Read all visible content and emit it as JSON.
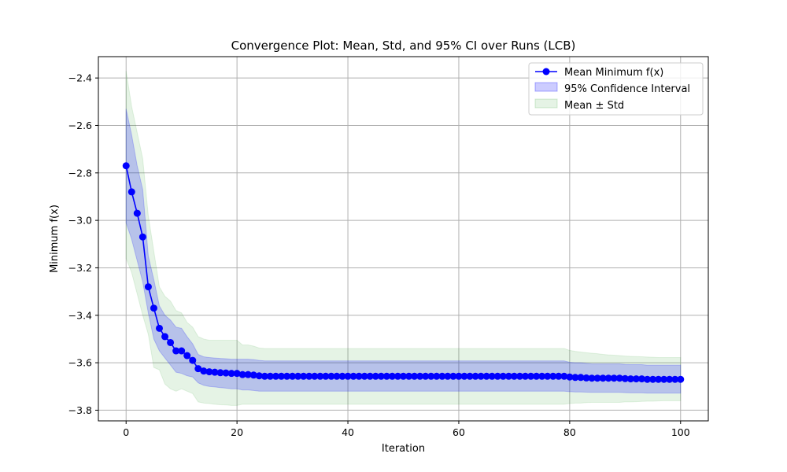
{
  "chart_data": {
    "type": "line",
    "title": "Convergence Plot: Mean, Std, and 95% CI over Runs (LCB)",
    "xlabel": "Iteration",
    "ylabel": "Minimum f(x)",
    "xlim": [
      -5,
      105
    ],
    "ylim": [
      -3.845,
      -2.31
    ],
    "xticks": [
      0,
      20,
      40,
      60,
      80,
      100
    ],
    "xtick_labels": [
      "0",
      "20",
      "40",
      "60",
      "80",
      "100"
    ],
    "yticks": [
      -3.8,
      -3.6,
      -3.4,
      -3.2,
      -3.0,
      -2.8,
      -2.6,
      -2.4
    ],
    "ytick_labels": [
      "−3.8",
      "−3.6",
      "−3.4",
      "−3.2",
      "−3.0",
      "−2.8",
      "−2.6",
      "−2.4"
    ],
    "grid": true,
    "legend_position": "top-right",
    "legend": [
      "Mean Minimum f(x)",
      "95% Confidence Interval",
      "Mean ± Std"
    ],
    "colors": {
      "mean": "#0000ff",
      "ci_fill": "#0000ff",
      "std_fill": "#2ca02c",
      "grid": "#b0b0b0"
    },
    "x": [
      0,
      1,
      2,
      3,
      4,
      5,
      6,
      7,
      8,
      9,
      10,
      11,
      12,
      13,
      14,
      15,
      16,
      17,
      18,
      19,
      20,
      21,
      22,
      23,
      24,
      25,
      26,
      27,
      28,
      29,
      30,
      31,
      32,
      33,
      34,
      35,
      36,
      37,
      38,
      39,
      40,
      41,
      42,
      43,
      44,
      45,
      46,
      47,
      48,
      49,
      50,
      51,
      52,
      53,
      54,
      55,
      56,
      57,
      58,
      59,
      60,
      61,
      62,
      63,
      64,
      65,
      66,
      67,
      68,
      69,
      70,
      71,
      72,
      73,
      74,
      75,
      76,
      77,
      78,
      79,
      80,
      81,
      82,
      83,
      84,
      85,
      86,
      87,
      88,
      89,
      90,
      91,
      92,
      93,
      94,
      95,
      96,
      97,
      98,
      99,
      100
    ],
    "series": [
      {
        "name": "Mean Minimum f(x)",
        "values": [
          -2.77,
          -2.88,
          -2.97,
          -3.07,
          -3.28,
          -3.37,
          -3.455,
          -3.49,
          -3.515,
          -3.55,
          -3.55,
          -3.57,
          -3.59,
          -3.625,
          -3.635,
          -3.638,
          -3.64,
          -3.642,
          -3.643,
          -3.645,
          -3.645,
          -3.65,
          -3.65,
          -3.652,
          -3.655,
          -3.657,
          -3.657,
          -3.657,
          -3.657,
          -3.657,
          -3.657,
          -3.657,
          -3.657,
          -3.657,
          -3.657,
          -3.657,
          -3.657,
          -3.657,
          -3.657,
          -3.657,
          -3.657,
          -3.657,
          -3.657,
          -3.657,
          -3.657,
          -3.657,
          -3.657,
          -3.657,
          -3.657,
          -3.657,
          -3.657,
          -3.657,
          -3.657,
          -3.657,
          -3.657,
          -3.657,
          -3.657,
          -3.657,
          -3.657,
          -3.657,
          -3.657,
          -3.657,
          -3.657,
          -3.657,
          -3.657,
          -3.657,
          -3.657,
          -3.657,
          -3.657,
          -3.657,
          -3.657,
          -3.657,
          -3.657,
          -3.657,
          -3.657,
          -3.657,
          -3.657,
          -3.657,
          -3.657,
          -3.657,
          -3.66,
          -3.662,
          -3.662,
          -3.664,
          -3.665,
          -3.665,
          -3.665,
          -3.665,
          -3.665,
          -3.665,
          -3.667,
          -3.668,
          -3.668,
          -3.668,
          -3.67,
          -3.67,
          -3.67,
          -3.67,
          -3.67,
          -3.67,
          -3.67
        ]
      },
      {
        "name": "95% Confidence Interval",
        "lower": [
          -3.01,
          -3.08,
          -3.17,
          -3.26,
          -3.39,
          -3.5,
          -3.55,
          -3.58,
          -3.61,
          -3.64,
          -3.645,
          -3.655,
          -3.66,
          -3.685,
          -3.695,
          -3.7,
          -3.702,
          -3.705,
          -3.707,
          -3.71,
          -3.71,
          -3.715,
          -3.715,
          -3.717,
          -3.72,
          -3.72,
          -3.72,
          -3.72,
          -3.72,
          -3.72,
          -3.72,
          -3.72,
          -3.72,
          -3.72,
          -3.72,
          -3.72,
          -3.72,
          -3.72,
          -3.72,
          -3.72,
          -3.72,
          -3.72,
          -3.72,
          -3.72,
          -3.72,
          -3.72,
          -3.72,
          -3.72,
          -3.72,
          -3.72,
          -3.72,
          -3.72,
          -3.72,
          -3.72,
          -3.72,
          -3.72,
          -3.72,
          -3.72,
          -3.72,
          -3.72,
          -3.72,
          -3.72,
          -3.72,
          -3.72,
          -3.72,
          -3.72,
          -3.72,
          -3.72,
          -3.72,
          -3.72,
          -3.72,
          -3.72,
          -3.72,
          -3.72,
          -3.72,
          -3.72,
          -3.72,
          -3.72,
          -3.72,
          -3.72,
          -3.722,
          -3.723,
          -3.723,
          -3.724,
          -3.725,
          -3.725,
          -3.725,
          -3.725,
          -3.725,
          -3.725,
          -3.726,
          -3.727,
          -3.727,
          -3.727,
          -3.728,
          -3.728,
          -3.728,
          -3.728,
          -3.728,
          -3.728,
          -3.728
        ],
        "upper": [
          -2.53,
          -2.64,
          -2.77,
          -2.87,
          -3.15,
          -3.25,
          -3.36,
          -3.4,
          -3.42,
          -3.45,
          -3.455,
          -3.49,
          -3.52,
          -3.565,
          -3.575,
          -3.578,
          -3.58,
          -3.582,
          -3.583,
          -3.585,
          -3.585,
          -3.585,
          -3.585,
          -3.587,
          -3.59,
          -3.592,
          -3.592,
          -3.592,
          -3.592,
          -3.592,
          -3.592,
          -3.592,
          -3.592,
          -3.592,
          -3.592,
          -3.592,
          -3.592,
          -3.592,
          -3.592,
          -3.592,
          -3.592,
          -3.592,
          -3.592,
          -3.592,
          -3.592,
          -3.592,
          -3.592,
          -3.592,
          -3.592,
          -3.592,
          -3.592,
          -3.592,
          -3.592,
          -3.592,
          -3.592,
          -3.592,
          -3.592,
          -3.592,
          -3.592,
          -3.592,
          -3.592,
          -3.592,
          -3.592,
          -3.592,
          -3.592,
          -3.592,
          -3.592,
          -3.592,
          -3.592,
          -3.592,
          -3.592,
          -3.592,
          -3.592,
          -3.592,
          -3.592,
          -3.592,
          -3.592,
          -3.592,
          -3.592,
          -3.592,
          -3.598,
          -3.6,
          -3.6,
          -3.603,
          -3.605,
          -3.605,
          -3.605,
          -3.605,
          -3.605,
          -3.605,
          -3.607,
          -3.608,
          -3.608,
          -3.608,
          -3.61,
          -3.61,
          -3.61,
          -3.61,
          -3.61,
          -3.61,
          -3.61
        ]
      },
      {
        "name": "Mean ± Std",
        "lower": [
          -3.16,
          -3.22,
          -3.31,
          -3.4,
          -3.48,
          -3.62,
          -3.63,
          -3.69,
          -3.71,
          -3.72,
          -3.71,
          -3.72,
          -3.73,
          -3.765,
          -3.77,
          -3.772,
          -3.775,
          -3.777,
          -3.778,
          -3.78,
          -3.78,
          -3.775,
          -3.775,
          -3.775,
          -3.775,
          -3.775,
          -3.775,
          -3.775,
          -3.775,
          -3.775,
          -3.775,
          -3.775,
          -3.775,
          -3.775,
          -3.775,
          -3.775,
          -3.775,
          -3.775,
          -3.775,
          -3.775,
          -3.775,
          -3.775,
          -3.775,
          -3.775,
          -3.775,
          -3.775,
          -3.775,
          -3.775,
          -3.775,
          -3.775,
          -3.775,
          -3.775,
          -3.775,
          -3.775,
          -3.775,
          -3.775,
          -3.775,
          -3.775,
          -3.775,
          -3.775,
          -3.775,
          -3.775,
          -3.775,
          -3.775,
          -3.775,
          -3.775,
          -3.775,
          -3.775,
          -3.775,
          -3.775,
          -3.775,
          -3.775,
          -3.775,
          -3.775,
          -3.775,
          -3.775,
          -3.775,
          -3.775,
          -3.775,
          -3.775,
          -3.772,
          -3.77,
          -3.77,
          -3.768,
          -3.767,
          -3.767,
          -3.767,
          -3.767,
          -3.767,
          -3.767,
          -3.765,
          -3.765,
          -3.764,
          -3.763,
          -3.762,
          -3.762,
          -3.761,
          -3.76,
          -3.76,
          -3.76,
          -3.76
        ],
        "upper": [
          -2.37,
          -2.52,
          -2.63,
          -2.74,
          -2.98,
          -3.13,
          -3.28,
          -3.32,
          -3.34,
          -3.38,
          -3.39,
          -3.43,
          -3.45,
          -3.49,
          -3.5,
          -3.505,
          -3.505,
          -3.505,
          -3.505,
          -3.505,
          -3.505,
          -3.525,
          -3.525,
          -3.53,
          -3.538,
          -3.54,
          -3.54,
          -3.54,
          -3.54,
          -3.54,
          -3.54,
          -3.54,
          -3.54,
          -3.54,
          -3.54,
          -3.54,
          -3.54,
          -3.54,
          -3.54,
          -3.54,
          -3.54,
          -3.54,
          -3.54,
          -3.54,
          -3.54,
          -3.54,
          -3.54,
          -3.54,
          -3.54,
          -3.54,
          -3.54,
          -3.54,
          -3.54,
          -3.54,
          -3.54,
          -3.54,
          -3.54,
          -3.54,
          -3.54,
          -3.54,
          -3.54,
          -3.54,
          -3.54,
          -3.54,
          -3.54,
          -3.54,
          -3.54,
          -3.54,
          -3.54,
          -3.54,
          -3.54,
          -3.54,
          -3.54,
          -3.54,
          -3.54,
          -3.54,
          -3.54,
          -3.54,
          -3.54,
          -3.54,
          -3.548,
          -3.552,
          -3.555,
          -3.558,
          -3.56,
          -3.562,
          -3.565,
          -3.567,
          -3.568,
          -3.57,
          -3.572,
          -3.573,
          -3.574,
          -3.575,
          -3.576,
          -3.577,
          -3.578,
          -3.578,
          -3.578,
          -3.578,
          -3.578
        ]
      }
    ]
  }
}
